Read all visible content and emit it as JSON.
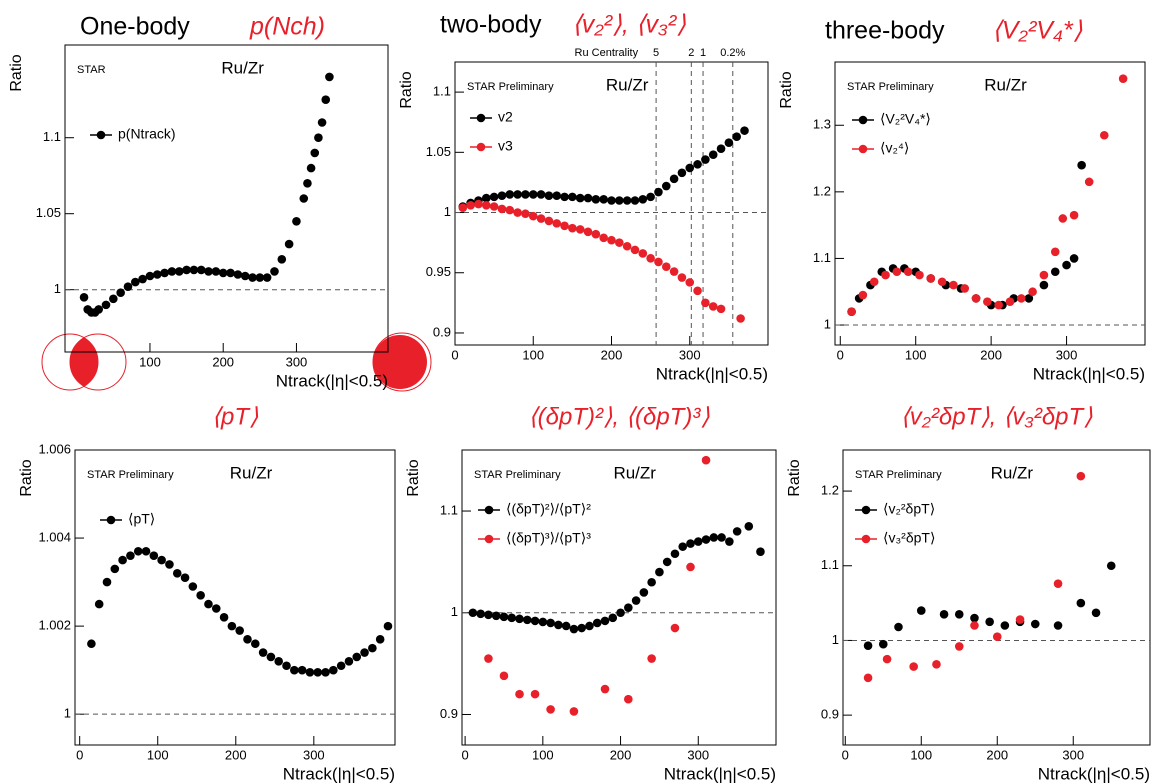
{
  "chart_data": [
    {
      "type": "scatter",
      "title": "One-body",
      "observable": "p(Nch)",
      "experiment": "STAR",
      "system": "Ru/Zr",
      "ylabel": "Ratio",
      "xlabel": "Ntrack(|η|<0.5)",
      "xlim": [
        -16,
        425
      ],
      "ylim": [
        0.959,
        1.161
      ],
      "xticks": [
        100,
        200,
        300
      ],
      "yticks": [
        1,
        1.05,
        1.1
      ],
      "hline": 1,
      "series": [
        {
          "name": "p(Ntrack)",
          "color": "#000000",
          "x": [
            10,
            15,
            20,
            25,
            30,
            40,
            50,
            60,
            70,
            80,
            90,
            100,
            110,
            120,
            130,
            140,
            150,
            160,
            170,
            180,
            190,
            200,
            210,
            220,
            230,
            240,
            250,
            260,
            270,
            280,
            290,
            300,
            310,
            315,
            320,
            325,
            330,
            335,
            340,
            345
          ],
          "values": [
            0.995,
            0.987,
            0.985,
            0.985,
            0.987,
            0.99,
            0.994,
            0.998,
            1.002,
            1.005,
            1.007,
            1.009,
            1.01,
            1.011,
            1.012,
            1.012,
            1.013,
            1.013,
            1.013,
            1.012,
            1.012,
            1.011,
            1.011,
            1.01,
            1.009,
            1.008,
            1.008,
            1.008,
            1.012,
            1.02,
            1.03,
            1.045,
            1.06,
            1.07,
            1.08,
            1.09,
            1.1,
            1.11,
            1.125,
            1.14
          ]
        }
      ]
    },
    {
      "type": "scatter",
      "title": "two-body",
      "observable": "⟨v₂²⟩, ⟨v₃²⟩",
      "experiment": "STAR Preliminary",
      "system": "Ru/Zr",
      "ylabel": "Ratio",
      "xlabel": "Ntrack(|η|<0.5)",
      "xlim": [
        0,
        400
      ],
      "ylim": [
        0.89,
        1.125
      ],
      "xticks": [
        0,
        100,
        200,
        300
      ],
      "yticks": [
        0.9,
        0.95,
        1,
        1.05,
        1.1
      ],
      "hline": 1,
      "centrality_label": "Ru Centrality",
      "centrality_lines": [
        {
          "value": 257,
          "label": "5"
        },
        {
          "value": 302,
          "label": "2"
        },
        {
          "value": 317,
          "label": "1"
        },
        {
          "value": 355,
          "label": "0.2%"
        }
      ],
      "series": [
        {
          "name": "v2",
          "color": "#000000",
          "x": [
            10,
            20,
            30,
            40,
            50,
            60,
            70,
            80,
            90,
            100,
            110,
            120,
            130,
            140,
            150,
            160,
            170,
            180,
            190,
            200,
            210,
            220,
            230,
            240,
            250,
            260,
            270,
            280,
            290,
            300,
            310,
            320,
            330,
            340,
            350,
            360,
            370
          ],
          "values": [
            1.005,
            1.008,
            1.01,
            1.012,
            1.013,
            1.014,
            1.015,
            1.015,
            1.015,
            1.015,
            1.015,
            1.014,
            1.014,
            1.013,
            1.013,
            1.012,
            1.012,
            1.011,
            1.011,
            1.01,
            1.01,
            1.01,
            1.01,
            1.011,
            1.013,
            1.017,
            1.022,
            1.028,
            1.033,
            1.037,
            1.04,
            1.044,
            1.048,
            1.053,
            1.058,
            1.063,
            1.068
          ]
        },
        {
          "name": "v3",
          "color": "#e8202a",
          "x": [
            10,
            20,
            30,
            40,
            50,
            60,
            70,
            80,
            90,
            100,
            110,
            120,
            130,
            140,
            150,
            160,
            170,
            180,
            190,
            200,
            210,
            220,
            230,
            240,
            250,
            260,
            270,
            280,
            290,
            300,
            310,
            320,
            330,
            340,
            365
          ],
          "values": [
            1.004,
            1.006,
            1.007,
            1.006,
            1.005,
            1.003,
            1.002,
            1.0,
            0.999,
            0.997,
            0.995,
            0.993,
            0.991,
            0.989,
            0.987,
            0.986,
            0.984,
            0.982,
            0.979,
            0.977,
            0.975,
            0.972,
            0.969,
            0.966,
            0.962,
            0.959,
            0.955,
            0.951,
            0.946,
            0.942,
            0.935,
            0.925,
            0.922,
            0.92,
            0.912
          ]
        }
      ]
    },
    {
      "type": "scatter",
      "title": "three-body",
      "observable": "⟨V₂²V₄*⟩",
      "experiment": "STAR Preliminary",
      "system": "Ru/Zr",
      "ylabel": "Ratio",
      "xlabel": "Ntrack(|η|<0.5)",
      "xlim": [
        -7,
        404
      ],
      "ylim": [
        0.97,
        1.395
      ],
      "xticks": [
        0,
        100,
        200,
        300
      ],
      "yticks": [
        1,
        1.1,
        1.2,
        1.3
      ],
      "hline": 1,
      "series": [
        {
          "name": "⟨V₂²V₄*⟩",
          "color": "#000000",
          "x": [
            15,
            25,
            40,
            55,
            70,
            85,
            100,
            120,
            140,
            160,
            180,
            200,
            215,
            230,
            250,
            270,
            285,
            300,
            310,
            320
          ],
          "values": [
            1.02,
            1.04,
            1.06,
            1.08,
            1.085,
            1.085,
            1.08,
            1.07,
            1.06,
            1.055,
            1.04,
            1.03,
            1.03,
            1.04,
            1.04,
            1.06,
            1.08,
            1.09,
            1.1,
            1.24
          ]
        },
        {
          "name": "⟨v₂⁴⟩",
          "color": "#e8202a",
          "x": [
            15,
            30,
            45,
            60,
            75,
            90,
            105,
            120,
            135,
            150,
            165,
            180,
            195,
            210,
            225,
            240,
            255,
            270,
            285,
            295,
            310,
            330,
            350,
            375
          ],
          "values": [
            1.02,
            1.045,
            1.065,
            1.075,
            1.08,
            1.08,
            1.075,
            1.07,
            1.065,
            1.06,
            1.055,
            1.04,
            1.035,
            1.03,
            1.035,
            1.04,
            1.05,
            1.075,
            1.11,
            1.16,
            1.165,
            1.215,
            1.285,
            1.37
          ]
        }
      ]
    },
    {
      "type": "scatter",
      "observable": "⟨pT⟩",
      "experiment": "STAR Preliminary",
      "system": "Ru/Zr",
      "ylabel": "Ratio",
      "xlabel": "Ntrack(|η|<0.5)",
      "xlim": [
        -6,
        404
      ],
      "ylim": [
        0.9993,
        1.006
      ],
      "xticks": [
        0,
        100,
        200,
        300
      ],
      "yticks": [
        1,
        1.002,
        1.004,
        1.006
      ],
      "hline": 1,
      "series": [
        {
          "name": "⟨pT⟩",
          "color": "#000000",
          "x": [
            15,
            25,
            35,
            45,
            55,
            65,
            75,
            85,
            95,
            105,
            115,
            125,
            135,
            145,
            155,
            165,
            175,
            185,
            195,
            205,
            215,
            225,
            235,
            245,
            255,
            265,
            275,
            285,
            295,
            305,
            315,
            325,
            335,
            345,
            355,
            365,
            375,
            385,
            395
          ],
          "values": [
            1.0016,
            1.0025,
            1.003,
            1.0033,
            1.0035,
            1.0036,
            1.0037,
            1.0037,
            1.0036,
            1.0035,
            1.0034,
            1.0032,
            1.0031,
            1.0029,
            1.0027,
            1.0025,
            1.0024,
            1.0022,
            1.002,
            1.0019,
            1.0017,
            1.0016,
            1.0014,
            1.0013,
            1.0012,
            1.0011,
            1.001,
            1.001,
            1.00095,
            1.00095,
            1.00095,
            1.001,
            1.0011,
            1.0012,
            1.0013,
            1.0014,
            1.0015,
            1.0017,
            1.002
          ]
        }
      ]
    },
    {
      "type": "scatter",
      "observable": "⟨(δpT)²⟩, ⟨(δpT)³⟩",
      "experiment": "STAR Preliminary",
      "system": "Ru/Zr",
      "ylabel": "Ratio",
      "xlabel": "Ntrack(|η|<0.5)",
      "xlim": [
        -4,
        400
      ],
      "ylim": [
        0.87,
        1.16
      ],
      "xticks": [
        0,
        100,
        200,
        300
      ],
      "yticks": [
        0.9,
        1,
        1.1
      ],
      "hline": 1,
      "series": [
        {
          "name": "⟨(δpT)²⟩/⟨pT⟩²",
          "color": "#000000",
          "x": [
            10,
            20,
            30,
            40,
            50,
            60,
            70,
            80,
            90,
            100,
            110,
            120,
            130,
            140,
            150,
            160,
            170,
            180,
            190,
            200,
            210,
            220,
            230,
            240,
            250,
            260,
            270,
            280,
            290,
            300,
            310,
            320,
            330,
            340,
            350,
            365,
            380
          ],
          "values": [
            1.0,
            0.999,
            0.998,
            0.997,
            0.996,
            0.995,
            0.994,
            0.993,
            0.992,
            0.991,
            0.99,
            0.988,
            0.987,
            0.984,
            0.985,
            0.987,
            0.99,
            0.992,
            0.995,
            1.0,
            1.005,
            1.012,
            1.02,
            1.03,
            1.04,
            1.05,
            1.058,
            1.065,
            1.068,
            1.07,
            1.072,
            1.074,
            1.074,
            1.07,
            1.08,
            1.085,
            1.06
          ]
        },
        {
          "name": "⟨(δpT)³⟩/⟨pT⟩³",
          "color": "#e8202a",
          "x": [
            30,
            50,
            70,
            90,
            110,
            140,
            180,
            210,
            240,
            270,
            290,
            310
          ],
          "values": [
            0.955,
            0.938,
            0.92,
            0.92,
            0.905,
            0.903,
            0.925,
            0.915,
            0.955,
            0.985,
            1.045,
            1.15
          ]
        }
      ]
    },
    {
      "type": "scatter",
      "observable": "⟨v₂²δpT⟩, ⟨v₃²δpT⟩",
      "experiment": "STAR Preliminary",
      "system": "Ru/Zr",
      "ylabel": "Ratio",
      "xlabel": "Ntrack(|η|<0.5)",
      "xlim": [
        -3,
        401
      ],
      "ylim": [
        0.86,
        1.255
      ],
      "xticks": [
        0,
        100,
        200,
        300
      ],
      "yticks": [
        0.9,
        1,
        1.1,
        1.2
      ],
      "hline": 1,
      "series": [
        {
          "name": "⟨v₂²δpT⟩",
          "color": "#000000",
          "x": [
            30,
            50,
            70,
            100,
            130,
            150,
            170,
            190,
            210,
            230,
            250,
            280,
            310,
            330,
            350
          ],
          "values": [
            0.993,
            0.995,
            1.018,
            1.04,
            1.035,
            1.035,
            1.03,
            1.025,
            1.02,
            1.025,
            1.022,
            1.02,
            1.05,
            1.037,
            1.1
          ]
        },
        {
          "name": "⟨v₃²δpT⟩",
          "color": "#e8202a",
          "x": [
            30,
            55,
            90,
            120,
            150,
            170,
            200,
            230,
            280,
            310
          ],
          "values": [
            0.95,
            0.975,
            0.965,
            0.968,
            0.992,
            1.02,
            1.005,
            1.028,
            1.076,
            1.22
          ]
        }
      ]
    }
  ]
}
